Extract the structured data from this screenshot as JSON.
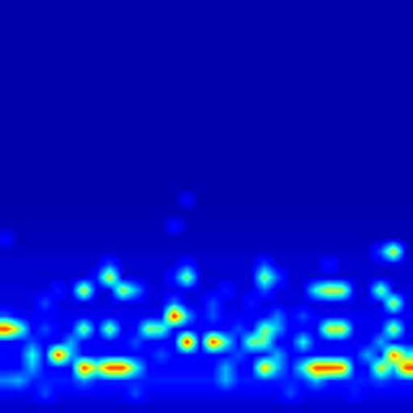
{
  "chart_data": {
    "type": "heatmap",
    "color": "jet",
    "tick_labels": false,
    "value_range": [
      0,
      1
    ],
    "cells": [
      [
        0.04,
        0.04,
        0.04,
        0.04,
        0.04,
        0.04,
        0.04,
        0.04,
        0.04,
        0.04,
        0.04,
        0.04,
        0.04,
        0.04,
        0.04,
        0.04,
        0.04,
        0.04,
        0.04,
        0.04,
        0.04,
        0.04,
        0.04,
        0.04,
        0.04,
        0.04,
        0.04,
        0.04,
        0.04,
        0.04,
        0.04,
        0.04
      ],
      [
        0.04,
        0.04,
        0.04,
        0.04,
        0.04,
        0.04,
        0.04,
        0.04,
        0.04,
        0.04,
        0.04,
        0.04,
        0.04,
        0.04,
        0.04,
        0.04,
        0.04,
        0.04,
        0.04,
        0.04,
        0.04,
        0.04,
        0.04,
        0.04,
        0.04,
        0.04,
        0.04,
        0.04,
        0.04,
        0.04,
        0.04,
        0.04
      ],
      [
        0.04,
        0.04,
        0.04,
        0.04,
        0.04,
        0.04,
        0.04,
        0.04,
        0.04,
        0.04,
        0.04,
        0.04,
        0.04,
        0.04,
        0.04,
        0.04,
        0.04,
        0.04,
        0.04,
        0.04,
        0.04,
        0.04,
        0.04,
        0.04,
        0.04,
        0.04,
        0.04,
        0.04,
        0.04,
        0.04,
        0.04,
        0.04
      ],
      [
        0.04,
        0.04,
        0.04,
        0.04,
        0.04,
        0.04,
        0.04,
        0.04,
        0.04,
        0.04,
        0.04,
        0.04,
        0.04,
        0.04,
        0.04,
        0.04,
        0.04,
        0.04,
        0.04,
        0.04,
        0.04,
        0.04,
        0.04,
        0.04,
        0.04,
        0.04,
        0.04,
        0.04,
        0.04,
        0.04,
        0.04,
        0.04
      ],
      [
        0.04,
        0.04,
        0.04,
        0.04,
        0.04,
        0.04,
        0.04,
        0.04,
        0.04,
        0.04,
        0.04,
        0.04,
        0.04,
        0.04,
        0.04,
        0.04,
        0.04,
        0.04,
        0.04,
        0.04,
        0.04,
        0.04,
        0.04,
        0.04,
        0.04,
        0.04,
        0.04,
        0.04,
        0.04,
        0.04,
        0.04,
        0.04
      ],
      [
        0.04,
        0.04,
        0.04,
        0.04,
        0.04,
        0.04,
        0.04,
        0.04,
        0.04,
        0.04,
        0.04,
        0.04,
        0.04,
        0.04,
        0.04,
        0.04,
        0.04,
        0.04,
        0.04,
        0.04,
        0.04,
        0.04,
        0.04,
        0.04,
        0.04,
        0.04,
        0.04,
        0.04,
        0.04,
        0.04,
        0.04,
        0.04
      ],
      [
        0.04,
        0.04,
        0.04,
        0.04,
        0.04,
        0.04,
        0.04,
        0.04,
        0.04,
        0.04,
        0.04,
        0.04,
        0.04,
        0.04,
        0.04,
        0.04,
        0.04,
        0.04,
        0.04,
        0.04,
        0.04,
        0.04,
        0.04,
        0.04,
        0.04,
        0.04,
        0.04,
        0.04,
        0.04,
        0.04,
        0.04,
        0.04
      ],
      [
        0.04,
        0.04,
        0.04,
        0.04,
        0.04,
        0.04,
        0.04,
        0.04,
        0.04,
        0.04,
        0.04,
        0.04,
        0.04,
        0.04,
        0.04,
        0.04,
        0.04,
        0.04,
        0.04,
        0.04,
        0.04,
        0.04,
        0.04,
        0.04,
        0.04,
        0.04,
        0.04,
        0.04,
        0.04,
        0.04,
        0.04,
        0.04
      ],
      [
        0.04,
        0.04,
        0.04,
        0.04,
        0.04,
        0.04,
        0.04,
        0.04,
        0.04,
        0.04,
        0.04,
        0.04,
        0.04,
        0.04,
        0.04,
        0.04,
        0.04,
        0.04,
        0.04,
        0.04,
        0.04,
        0.04,
        0.04,
        0.04,
        0.04,
        0.04,
        0.04,
        0.04,
        0.04,
        0.04,
        0.04,
        0.04
      ],
      [
        0.04,
        0.04,
        0.04,
        0.04,
        0.04,
        0.04,
        0.04,
        0.04,
        0.04,
        0.04,
        0.04,
        0.04,
        0.04,
        0.04,
        0.04,
        0.04,
        0.04,
        0.04,
        0.04,
        0.04,
        0.04,
        0.04,
        0.04,
        0.04,
        0.04,
        0.04,
        0.04,
        0.04,
        0.04,
        0.04,
        0.04,
        0.04
      ],
      [
        0.04,
        0.04,
        0.04,
        0.04,
        0.04,
        0.04,
        0.04,
        0.04,
        0.04,
        0.04,
        0.04,
        0.04,
        0.04,
        0.04,
        0.04,
        0.04,
        0.04,
        0.04,
        0.04,
        0.04,
        0.04,
        0.04,
        0.04,
        0.04,
        0.04,
        0.04,
        0.04,
        0.04,
        0.04,
        0.04,
        0.04,
        0.04
      ],
      [
        0.04,
        0.04,
        0.04,
        0.04,
        0.04,
        0.04,
        0.04,
        0.04,
        0.04,
        0.04,
        0.04,
        0.04,
        0.04,
        0.04,
        0.04,
        0.04,
        0.04,
        0.04,
        0.04,
        0.04,
        0.04,
        0.04,
        0.04,
        0.04,
        0.04,
        0.04,
        0.04,
        0.04,
        0.04,
        0.04,
        0.04,
        0.04
      ],
      [
        0.04,
        0.04,
        0.04,
        0.04,
        0.04,
        0.04,
        0.04,
        0.04,
        0.04,
        0.04,
        0.04,
        0.04,
        0.04,
        0.04,
        0.04,
        0.04,
        0.04,
        0.04,
        0.04,
        0.04,
        0.04,
        0.04,
        0.04,
        0.04,
        0.04,
        0.04,
        0.04,
        0.04,
        0.04,
        0.04,
        0.04,
        0.04
      ],
      [
        0.04,
        0.04,
        0.04,
        0.04,
        0.04,
        0.04,
        0.04,
        0.04,
        0.04,
        0.04,
        0.04,
        0.04,
        0.04,
        0.04,
        0.04,
        0.04,
        0.04,
        0.04,
        0.04,
        0.04,
        0.04,
        0.04,
        0.04,
        0.04,
        0.04,
        0.04,
        0.04,
        0.04,
        0.04,
        0.04,
        0.04,
        0.04
      ],
      [
        0.04,
        0.04,
        0.04,
        0.04,
        0.04,
        0.04,
        0.04,
        0.04,
        0.04,
        0.04,
        0.04,
        0.04,
        0.04,
        0.04,
        0.04,
        0.04,
        0.04,
        0.04,
        0.04,
        0.04,
        0.04,
        0.04,
        0.04,
        0.04,
        0.04,
        0.04,
        0.04,
        0.04,
        0.04,
        0.04,
        0.04,
        0.04
      ],
      [
        0.04,
        0.04,
        0.04,
        0.04,
        0.04,
        0.04,
        0.04,
        0.04,
        0.04,
        0.04,
        0.04,
        0.04,
        0.04,
        0.04,
        0.12,
        0.04,
        0.04,
        0.04,
        0.04,
        0.04,
        0.04,
        0.04,
        0.04,
        0.04,
        0.04,
        0.04,
        0.04,
        0.04,
        0.04,
        0.04,
        0.04,
        0.04
      ],
      [
        0.04,
        0.04,
        0.04,
        0.04,
        0.04,
        0.04,
        0.04,
        0.04,
        0.04,
        0.04,
        0.04,
        0.04,
        0.04,
        0.04,
        0.04,
        0.04,
        0.04,
        0.04,
        0.04,
        0.04,
        0.04,
        0.04,
        0.04,
        0.04,
        0.04,
        0.04,
        0.04,
        0.04,
        0.04,
        0.04,
        0.04,
        0.04
      ],
      [
        0.05,
        0.05,
        0.05,
        0.05,
        0.05,
        0.05,
        0.05,
        0.05,
        0.05,
        0.05,
        0.05,
        0.05,
        0.05,
        0.15,
        0.05,
        0.05,
        0.05,
        0.05,
        0.05,
        0.05,
        0.05,
        0.05,
        0.05,
        0.05,
        0.05,
        0.05,
        0.05,
        0.05,
        0.05,
        0.05,
        0.05,
        0.05
      ],
      [
        0.12,
        0.05,
        0.05,
        0.05,
        0.05,
        0.05,
        0.05,
        0.05,
        0.05,
        0.05,
        0.05,
        0.05,
        0.05,
        0.05,
        0.05,
        0.05,
        0.05,
        0.05,
        0.05,
        0.05,
        0.05,
        0.05,
        0.05,
        0.05,
        0.05,
        0.05,
        0.05,
        0.05,
        0.05,
        0.05,
        0.05,
        0.05
      ],
      [
        0.06,
        0.06,
        0.06,
        0.06,
        0.06,
        0.06,
        0.06,
        0.06,
        0.06,
        0.06,
        0.06,
        0.06,
        0.06,
        0.06,
        0.06,
        0.06,
        0.06,
        0.06,
        0.06,
        0.06,
        0.06,
        0.06,
        0.06,
        0.06,
        0.06,
        0.06,
        0.06,
        0.06,
        0.06,
        0.2,
        0.6,
        0.06
      ],
      [
        0.07,
        0.07,
        0.07,
        0.07,
        0.07,
        0.07,
        0.07,
        0.07,
        0.2,
        0.07,
        0.07,
        0.07,
        0.07,
        0.07,
        0.15,
        0.07,
        0.07,
        0.07,
        0.07,
        0.07,
        0.2,
        0.07,
        0.07,
        0.07,
        0.07,
        0.15,
        0.07,
        0.07,
        0.07,
        0.07,
        0.07,
        0.07
      ],
      [
        0.07,
        0.07,
        0.07,
        0.07,
        0.07,
        0.07,
        0.07,
        0.15,
        0.6,
        0.07,
        0.07,
        0.07,
        0.07,
        0.15,
        0.5,
        0.07,
        0.07,
        0.07,
        0.07,
        0.07,
        0.5,
        0.2,
        0.07,
        0.07,
        0.07,
        0.07,
        0.07,
        0.07,
        0.07,
        0.07,
        0.07,
        0.07
      ],
      [
        0.08,
        0.08,
        0.08,
        0.08,
        0.15,
        0.08,
        0.6,
        0.08,
        0.08,
        0.55,
        0.3,
        0.08,
        0.08,
        0.08,
        0.08,
        0.08,
        0.08,
        0.15,
        0.08,
        0.08,
        0.2,
        0.08,
        0.08,
        0.08,
        0.4,
        0.6,
        0.55,
        0.08,
        0.08,
        0.5,
        0.08,
        0.08
      ],
      [
        0.08,
        0.08,
        0.08,
        0.2,
        0.08,
        0.08,
        0.08,
        0.08,
        0.08,
        0.08,
        0.08,
        0.08,
        0.08,
        0.25,
        0.08,
        0.08,
        0.2,
        0.08,
        0.08,
        0.15,
        0.08,
        0.08,
        0.08,
        0.08,
        0.08,
        0.08,
        0.08,
        0.08,
        0.08,
        0.08,
        0.55,
        0.08
      ],
      [
        0.2,
        0.1,
        0.1,
        0.1,
        0.1,
        0.1,
        0.1,
        0.1,
        0.1,
        0.1,
        0.1,
        0.1,
        0.1,
        0.9,
        0.3,
        0.1,
        0.2,
        0.1,
        0.1,
        0.1,
        0.1,
        0.25,
        0.1,
        0.2,
        0.1,
        0.1,
        0.1,
        0.1,
        0.1,
        0.1,
        0.1,
        0.1
      ],
      [
        0.85,
        0.5,
        0.1,
        0.2,
        0.1,
        0.1,
        0.5,
        0.1,
        0.5,
        0.1,
        0.1,
        0.5,
        0.45,
        0.1,
        0.1,
        0.1,
        0.1,
        0.1,
        0.2,
        0.1,
        0.5,
        0.3,
        0.1,
        0.1,
        0.1,
        0.6,
        0.6,
        0.1,
        0.1,
        0.1,
        0.55,
        0.1
      ],
      [
        0.1,
        0.1,
        0.2,
        0.1,
        0.1,
        0.3,
        0.1,
        0.1,
        0.1,
        0.1,
        0.2,
        0.1,
        0.1,
        0.1,
        0.9,
        0.1,
        0.85,
        0.4,
        0.1,
        0.5,
        0.45,
        0.1,
        0.1,
        0.4,
        0.1,
        0.1,
        0.1,
        0.1,
        0.1,
        0.3,
        0.1,
        0.1
      ],
      [
        0.12,
        0.12,
        0.4,
        0.12,
        0.85,
        0.3,
        0.12,
        0.12,
        0.12,
        0.12,
        0.12,
        0.12,
        0.2,
        0.12,
        0.12,
        0.12,
        0.12,
        0.12,
        0.2,
        0.12,
        0.12,
        0.3,
        0.12,
        0.12,
        0.12,
        0.12,
        0.12,
        0.12,
        0.3,
        0.12,
        0.8,
        0.4
      ],
      [
        0.12,
        0.12,
        0.3,
        0.12,
        0.12,
        0.12,
        0.85,
        0.5,
        0.85,
        0.85,
        0.4,
        0.12,
        0.12,
        0.12,
        0.12,
        0.12,
        0.12,
        0.3,
        0.12,
        0.12,
        0.7,
        0.3,
        0.12,
        0.4,
        0.85,
        0.85,
        0.8,
        0.12,
        0.12,
        0.6,
        0.3,
        0.85
      ],
      [
        0.25,
        0.3,
        0.15,
        0.15,
        0.15,
        0.15,
        0.25,
        0.15,
        0.15,
        0.15,
        0.15,
        0.15,
        0.15,
        0.15,
        0.15,
        0.15,
        0.15,
        0.3,
        0.15,
        0.15,
        0.15,
        0.15,
        0.15,
        0.15,
        0.3,
        0.15,
        0.15,
        0.15,
        0.15,
        0.2,
        0.15,
        0.15
      ],
      [
        0.1,
        0.1,
        0.1,
        0.2,
        0.1,
        0.1,
        0.1,
        0.1,
        0.1,
        0.1,
        0.2,
        0.1,
        0.1,
        0.1,
        0.1,
        0.1,
        0.1,
        0.1,
        0.1,
        0.1,
        0.1,
        0.1,
        0.2,
        0.1,
        0.1,
        0.1,
        0.1,
        0.15,
        0.1,
        0.1,
        0.1,
        0.1
      ],
      [
        0.07,
        0.07,
        0.07,
        0.07,
        0.07,
        0.07,
        0.07,
        0.07,
        0.07,
        0.07,
        0.07,
        0.07,
        0.07,
        0.07,
        0.07,
        0.07,
        0.07,
        0.07,
        0.07,
        0.07,
        0.07,
        0.07,
        0.07,
        0.07,
        0.07,
        0.07,
        0.07,
        0.07,
        0.07,
        0.07,
        0.07,
        0.07
      ]
    ]
  }
}
